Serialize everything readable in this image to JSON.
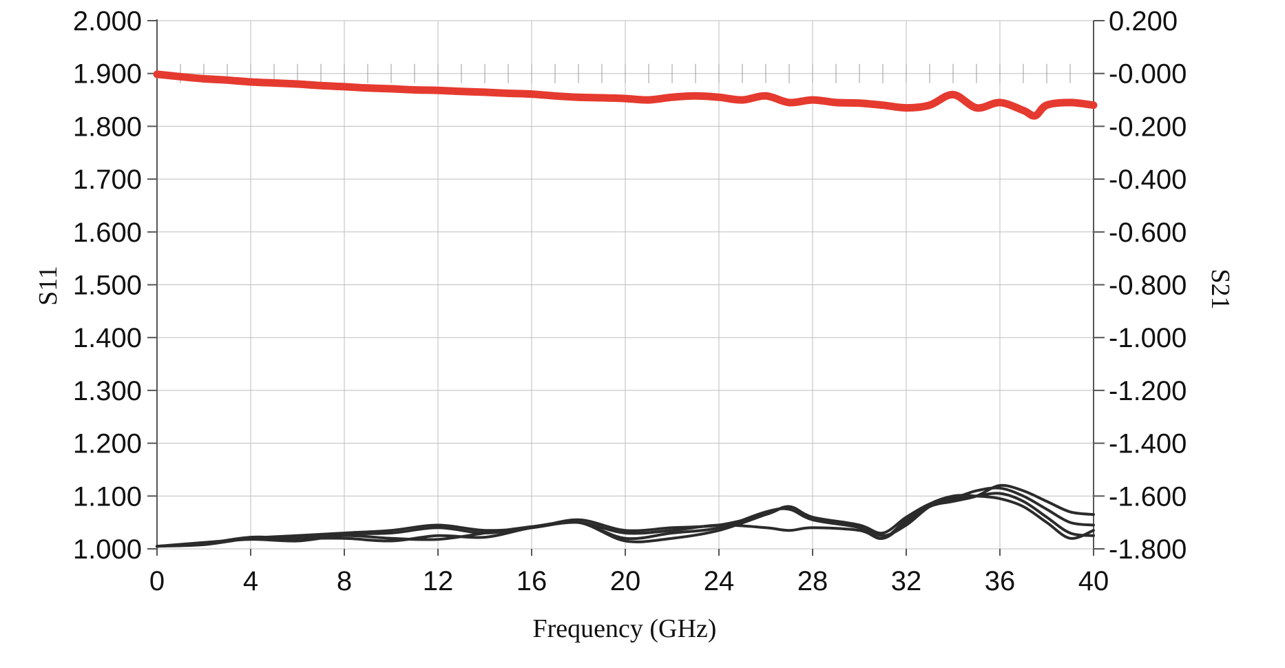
{
  "chart_data": {
    "type": "line",
    "title": "",
    "xlabel": "Frequency (GHz)",
    "ylabel_left": "S11",
    "ylabel_right": "S21",
    "xlim": [
      0,
      40
    ],
    "ylim_left": [
      1.0,
      2.0
    ],
    "ylim_right": [
      -1.8,
      0.2
    ],
    "x_ticks": [
      "0",
      "4",
      "8",
      "12",
      "16",
      "20",
      "24",
      "28",
      "32",
      "36",
      "40"
    ],
    "y_left_ticks": [
      "1.000",
      "1.100",
      "1.200",
      "1.300",
      "1.400",
      "1.500",
      "1.600",
      "1.700",
      "1.800",
      "1.900",
      "2.000"
    ],
    "y_right_ticks": [
      "-1.800",
      "-1.600",
      "-1.400",
      "-1.200",
      "-1.000",
      "-0.800",
      "-0.600",
      "-0.400",
      "-0.200",
      "-0.000",
      "0.200"
    ],
    "grid": true,
    "colors": {
      "s21": "#e53a2f",
      "s11": "#2b2b2b"
    },
    "series": [
      {
        "axis": "right",
        "color": "#e53a2f",
        "x": [
          0,
          1,
          2,
          3,
          4,
          5,
          6,
          7,
          8,
          9,
          10,
          11,
          12,
          13,
          14,
          15,
          16,
          17,
          18,
          19,
          20,
          21,
          22,
          23,
          24,
          25,
          26,
          27,
          28,
          29,
          30,
          31,
          32,
          33,
          34,
          35,
          36,
          37,
          37.5,
          38,
          39,
          40
        ],
        "values": [
          -0.003,
          -0.012,
          -0.02,
          -0.025,
          -0.032,
          -0.036,
          -0.04,
          -0.046,
          -0.05,
          -0.055,
          -0.058,
          -0.062,
          -0.064,
          -0.068,
          -0.071,
          -0.075,
          -0.078,
          -0.085,
          -0.09,
          -0.092,
          -0.095,
          -0.1,
          -0.09,
          -0.085,
          -0.09,
          -0.1,
          -0.085,
          -0.11,
          -0.1,
          -0.11,
          -0.112,
          -0.12,
          -0.13,
          -0.12,
          -0.08,
          -0.13,
          -0.11,
          -0.14,
          -0.16,
          -0.12,
          -0.11,
          -0.12
        ]
      },
      {
        "axis": "left",
        "color": "#2b2b2b",
        "x": [
          0,
          2,
          4,
          6,
          8,
          10,
          12,
          14,
          16,
          18,
          20,
          22,
          24,
          26,
          27,
          28,
          30,
          31,
          32,
          33,
          34,
          35,
          36,
          37,
          38,
          39,
          40
        ],
        "values": [
          1.005,
          1.008,
          1.02,
          1.025,
          1.03,
          1.035,
          1.045,
          1.035,
          1.04,
          1.055,
          1.035,
          1.04,
          1.045,
          1.065,
          1.08,
          1.06,
          1.045,
          1.03,
          1.06,
          1.085,
          1.095,
          1.1,
          1.105,
          1.09,
          1.06,
          1.03,
          1.025
        ]
      },
      {
        "axis": "left",
        "color": "#2b2b2b",
        "x": [
          0,
          2,
          4,
          6,
          8,
          10,
          12,
          14,
          16,
          18,
          20,
          22,
          24,
          26,
          27,
          28,
          30,
          31,
          32,
          33,
          34,
          35,
          36,
          37,
          38,
          39,
          40
        ],
        "values": [
          1.005,
          1.012,
          1.018,
          1.015,
          1.025,
          1.02,
          1.018,
          1.03,
          1.042,
          1.05,
          1.02,
          1.03,
          1.04,
          1.07,
          1.075,
          1.055,
          1.04,
          1.02,
          1.05,
          1.08,
          1.09,
          1.1,
          1.12,
          1.11,
          1.09,
          1.07,
          1.065
        ]
      },
      {
        "axis": "left",
        "color": "#2b2b2b",
        "x": [
          0,
          2,
          4,
          6,
          8,
          10,
          12,
          14,
          16,
          18,
          20,
          22,
          24,
          26,
          27,
          28,
          30,
          31,
          32,
          33,
          34,
          35,
          36,
          37,
          38,
          39,
          40
        ],
        "values": [
          1.005,
          1.01,
          1.022,
          1.02,
          1.02,
          1.015,
          1.025,
          1.022,
          1.04,
          1.05,
          1.015,
          1.02,
          1.035,
          1.065,
          1.08,
          1.06,
          1.045,
          1.025,
          1.045,
          1.08,
          1.095,
          1.11,
          1.115,
          1.1,
          1.075,
          1.05,
          1.045
        ]
      },
      {
        "axis": "left",
        "color": "#2b2b2b",
        "x": [
          0,
          2,
          4,
          6,
          8,
          10,
          12,
          14,
          16,
          18,
          20,
          22,
          24,
          26,
          27,
          28,
          30,
          31,
          32,
          33,
          34,
          35,
          36,
          37,
          38,
          39,
          40
        ],
        "values": [
          1.005,
          1.01,
          1.02,
          1.02,
          1.028,
          1.03,
          1.04,
          1.03,
          1.04,
          1.05,
          1.03,
          1.035,
          1.045,
          1.04,
          1.035,
          1.04,
          1.035,
          1.02,
          1.055,
          1.085,
          1.1,
          1.1,
          1.095,
          1.08,
          1.05,
          1.02,
          1.035
        ]
      }
    ]
  }
}
